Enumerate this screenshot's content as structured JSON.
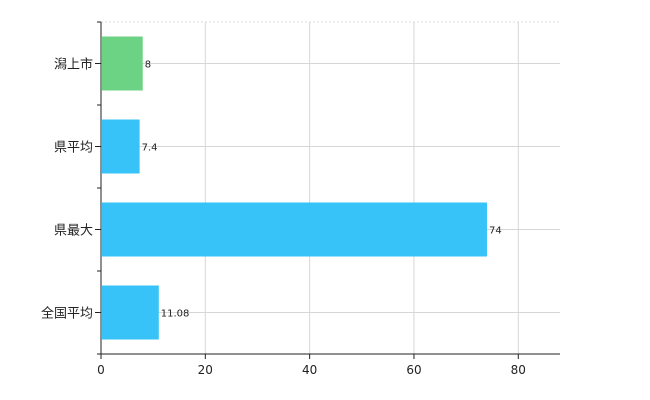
{
  "chart_data": {
    "type": "bar",
    "orientation": "horizontal",
    "categories": [
      "潟上市",
      "県平均",
      "県最大",
      "全国平均"
    ],
    "values": [
      8,
      7.4,
      74,
      11.08
    ],
    "value_labels": [
      "8",
      "7.4",
      "74",
      "11.08"
    ],
    "colors": [
      "#6dd384",
      "#37c3f7",
      "#37c3f7",
      "#37c3f7"
    ],
    "xlim": [
      0,
      88
    ],
    "xticks": [
      0,
      20,
      40,
      60,
      80
    ],
    "xtick_labels": [
      "0",
      "20",
      "40",
      "60",
      "80"
    ],
    "grid": true,
    "title": "",
    "xlabel": "",
    "ylabel": ""
  }
}
